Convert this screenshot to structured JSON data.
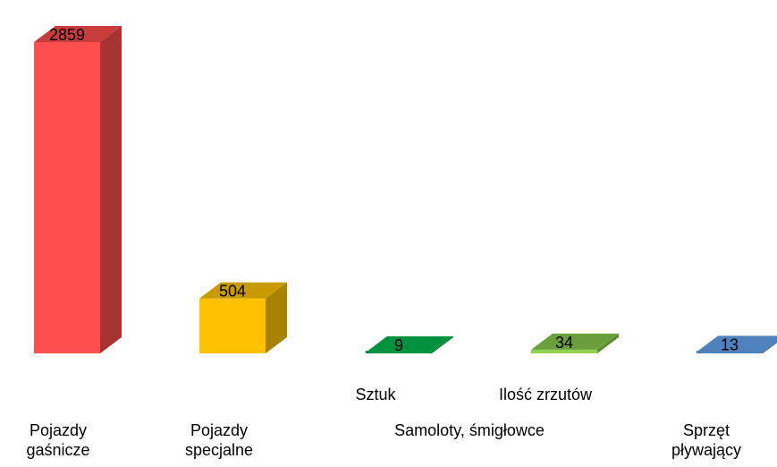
{
  "chart_data": {
    "type": "bar",
    "style": "3d",
    "legend": "none",
    "grid": false,
    "bars": [
      {
        "value": 2859,
        "label": "2859",
        "front": "#FF5050",
        "side": "#A83232",
        "top": "#C83C3C"
      },
      {
        "value": 504,
        "label": "504",
        "front": "#FFC000",
        "side": "#A88200",
        "top": "#C89A00"
      },
      {
        "value": 9,
        "label": "9",
        "front": "#00923F",
        "side": "#006A2D",
        "top": "#00923F"
      },
      {
        "value": 34,
        "label": "34",
        "front": "#92D050",
        "side": "#5E8A30",
        "top": "#6B9E3C"
      },
      {
        "value": 13,
        "label": "13",
        "front": "#4F81BD",
        "side": "#355E8E",
        "top": "#4F81BD"
      }
    ],
    "sub_categories": [
      "Sztuk",
      "Ilość zrzutów"
    ],
    "categories": [
      "Pojazdy\ngaśnicze",
      "Pojazdy\nspecjalne",
      "Samoloty, śmigłowce",
      "Sprzęt\npływający"
    ]
  }
}
